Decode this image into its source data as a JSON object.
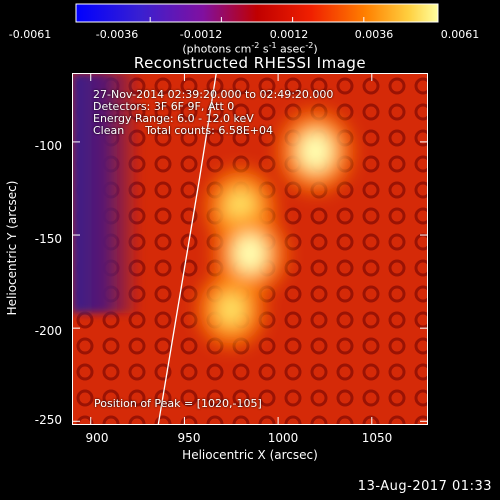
{
  "chart_data": {
    "type": "heatmap",
    "title": "Reconstructed RHESSI Image",
    "xlabel": "Heliocentric X (arcsec)",
    "ylabel": "Heliocentric Y (arcsec)",
    "xlim": [
      890,
      1080
    ],
    "ylim": [
      -252,
      -63
    ],
    "xticks": [
      "900",
      "950",
      "1000",
      "1050"
    ],
    "xtick_values": [
      900,
      950,
      1000,
      1050
    ],
    "yticks": [
      "-100",
      "-150",
      "-200",
      "-250"
    ],
    "ytick_values": [
      -100,
      -150,
      -200,
      -250
    ],
    "colorbar": {
      "ticks": [
        "-0.0061",
        "-0.0036",
        "-0.0012",
        "0.0012",
        "0.0036",
        "0.0061"
      ],
      "tick_values": [
        -0.0061,
        -0.0036,
        -0.0012,
        0.0012,
        0.0036,
        0.0061
      ],
      "range": [
        -0.0061,
        0.0061
      ],
      "unit_main": "(photons cm",
      "unit_exp1": "-2",
      "unit_mid": " s",
      "unit_exp2": "-1",
      "unit_end": " asec",
      "unit_exp3": "-2",
      "unit_close": ")"
    },
    "annotations": [
      "27-Nov-2014 02:39:20.000 to 02:49:20.000",
      "Detectors: 3F 6F 9F, Att 0",
      "Energy Range: 6.0 - 12.0 keV",
      "Clean      Total counts: 6.58E+04"
    ],
    "peak_label": "Position of Peak = [1020,-105]",
    "peak": [
      1020,
      -105
    ],
    "sources": [
      {
        "x": 1020,
        "y": -105,
        "intensity": 0.0061
      },
      {
        "x": 980,
        "y": -135,
        "intensity": 0.005
      },
      {
        "x": 985,
        "y": -160,
        "intensity": 0.0058
      },
      {
        "x": 975,
        "y": -190,
        "intensity": 0.0045
      }
    ],
    "limb_arc": [
      [
        967,
        -63
      ],
      [
        958,
        -120
      ],
      [
        948,
        -180
      ],
      [
        936,
        -252
      ]
    ]
  },
  "timestamp": "13-Aug-2017 01:33"
}
